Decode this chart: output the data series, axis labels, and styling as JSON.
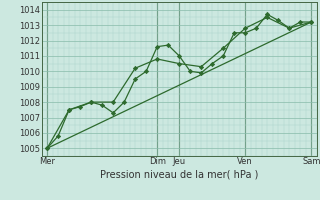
{
  "background_color": "#cce8e0",
  "grid_major_color": "#88bbaa",
  "grid_minor_color": "#aad4c8",
  "line_color": "#2d6a2d",
  "marker_color": "#2d6a2d",
  "xlabel": "Pression niveau de la mer( hPa )",
  "ylim": [
    1004.5,
    1014.5
  ],
  "yticks": [
    1005,
    1006,
    1007,
    1008,
    1009,
    1010,
    1011,
    1012,
    1013,
    1014
  ],
  "xlim": [
    0,
    150
  ],
  "day_labels": [
    "Mer",
    "Dim",
    "Jeu",
    "Ven",
    "Sam"
  ],
  "day_positions": [
    3,
    63,
    75,
    111,
    147
  ],
  "vline_positions": [
    3,
    63,
    75,
    111,
    147
  ],
  "series1": {
    "x": [
      3,
      9,
      15,
      21,
      27,
      33,
      39,
      45,
      51,
      57,
      63,
      69,
      75,
      81,
      87,
      93,
      99,
      105,
      111,
      117,
      123,
      129,
      135,
      141,
      147
    ],
    "y": [
      1005.0,
      1005.8,
      1007.5,
      1007.7,
      1008.0,
      1007.8,
      1007.3,
      1008.0,
      1009.5,
      1010.0,
      1011.6,
      1011.7,
      1011.0,
      1010.0,
      1009.9,
      1010.5,
      1011.0,
      1012.5,
      1012.5,
      1012.8,
      1013.7,
      1013.3,
      1012.8,
      1013.2,
      1013.2
    ]
  },
  "series2": {
    "x": [
      3,
      15,
      27,
      39,
      51,
      63,
      75,
      87,
      99,
      111,
      123,
      135,
      147
    ],
    "y": [
      1005.0,
      1007.5,
      1008.0,
      1008.0,
      1010.2,
      1010.8,
      1010.5,
      1010.3,
      1011.5,
      1012.8,
      1013.5,
      1012.8,
      1013.2
    ]
  },
  "trend": {
    "x": [
      3,
      147
    ],
    "y": [
      1005.0,
      1013.2
    ]
  },
  "xlabel_fontsize": 7.0,
  "tick_fontsize": 6.0
}
